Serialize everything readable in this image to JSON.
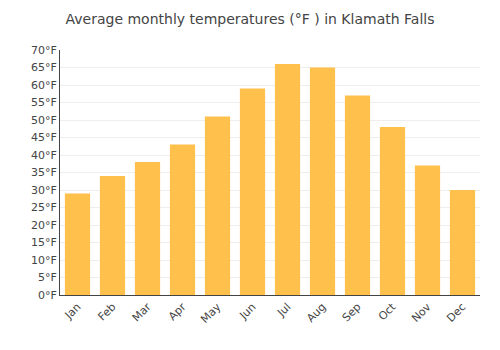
{
  "chart_data": {
    "type": "bar",
    "title": "Average monthly temperatures (°F ) in Klamath Falls",
    "categories": [
      "Jan",
      "Feb",
      "Mar",
      "Apr",
      "May",
      "Jun",
      "Jul",
      "Aug",
      "Sep",
      "Oct",
      "Nov",
      "Dec"
    ],
    "values": [
      29,
      34,
      38,
      43,
      51,
      59,
      66,
      65,
      57,
      48,
      37,
      30
    ],
    "color": "#FFC04C",
    "ylim": [
      0,
      70
    ],
    "yticks": [
      {
        "value": 0,
        "label": "0°F"
      },
      {
        "value": 5,
        "label": "5°F"
      },
      {
        "value": 10,
        "label": "10°F"
      },
      {
        "value": 15,
        "label": "15°F"
      },
      {
        "value": 20,
        "label": "20°F"
      },
      {
        "value": 25,
        "label": "25°F"
      },
      {
        "value": 30,
        "label": "30°F"
      },
      {
        "value": 35,
        "label": "35°F"
      },
      {
        "value": 40,
        "label": "40°F"
      },
      {
        "value": 45,
        "label": "45°F"
      },
      {
        "value": 50,
        "label": "50°F"
      },
      {
        "value": 55,
        "label": "55°F"
      },
      {
        "value": 60,
        "label": "60°F"
      },
      {
        "value": 65,
        "label": "65°F"
      },
      {
        "value": 70,
        "label": "70°F"
      }
    ],
    "grid": true
  }
}
